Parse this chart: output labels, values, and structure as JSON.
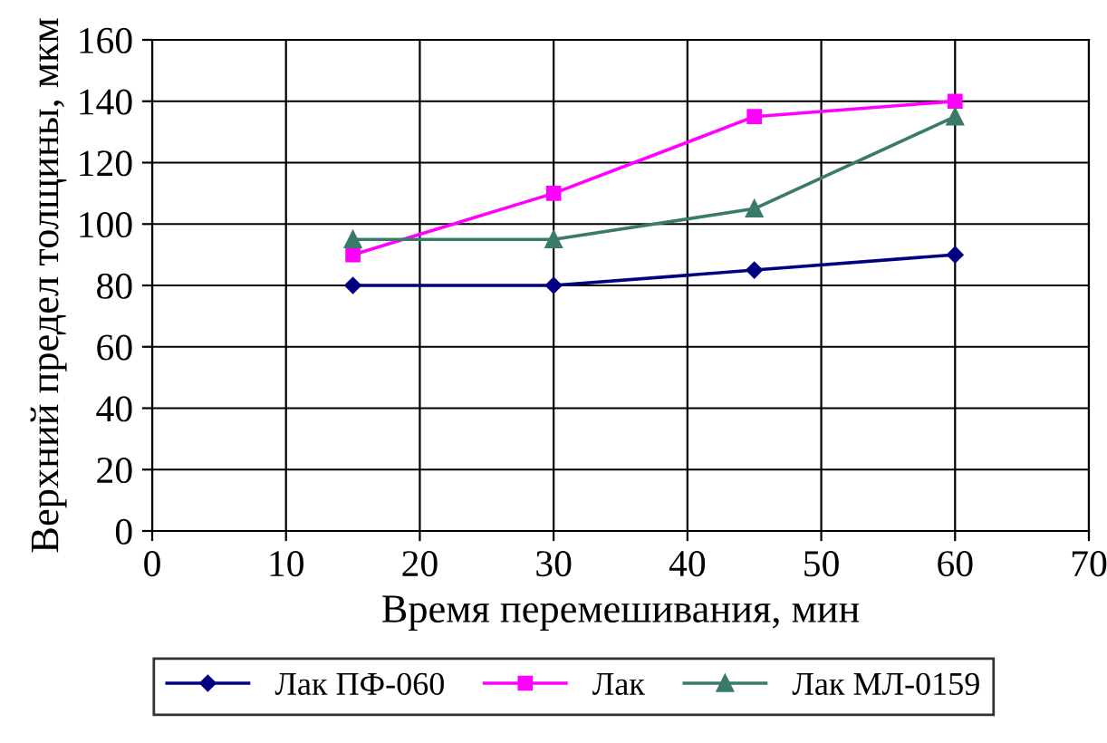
{
  "chart_data": {
    "type": "line",
    "xlabel": "Время перемешивания, мин",
    "ylabel": "Верхний предел толщины, мкм",
    "x": [
      15,
      30,
      45,
      60
    ],
    "series": [
      {
        "name": "Лак ПФ-060",
        "color": "#000080",
        "marker": "diamond",
        "values": [
          80,
          80,
          85,
          90
        ]
      },
      {
        "name": "Лак",
        "color": "#ff00ff",
        "marker": "square",
        "values": [
          90,
          110,
          135,
          140
        ]
      },
      {
        "name": "Лак МЛ-0159",
        "color": "#3a7a6a",
        "marker": "triangle",
        "values": [
          95,
          95,
          105,
          135
        ]
      }
    ],
    "xlim": [
      0,
      70
    ],
    "xticks": [
      0,
      10,
      20,
      30,
      40,
      50,
      60,
      70
    ],
    "ylim": [
      0,
      160
    ],
    "yticks": [
      0,
      20,
      40,
      60,
      80,
      100,
      120,
      140,
      160
    ],
    "grid": true,
    "legend": "bottom",
    "line_style": "solid"
  }
}
